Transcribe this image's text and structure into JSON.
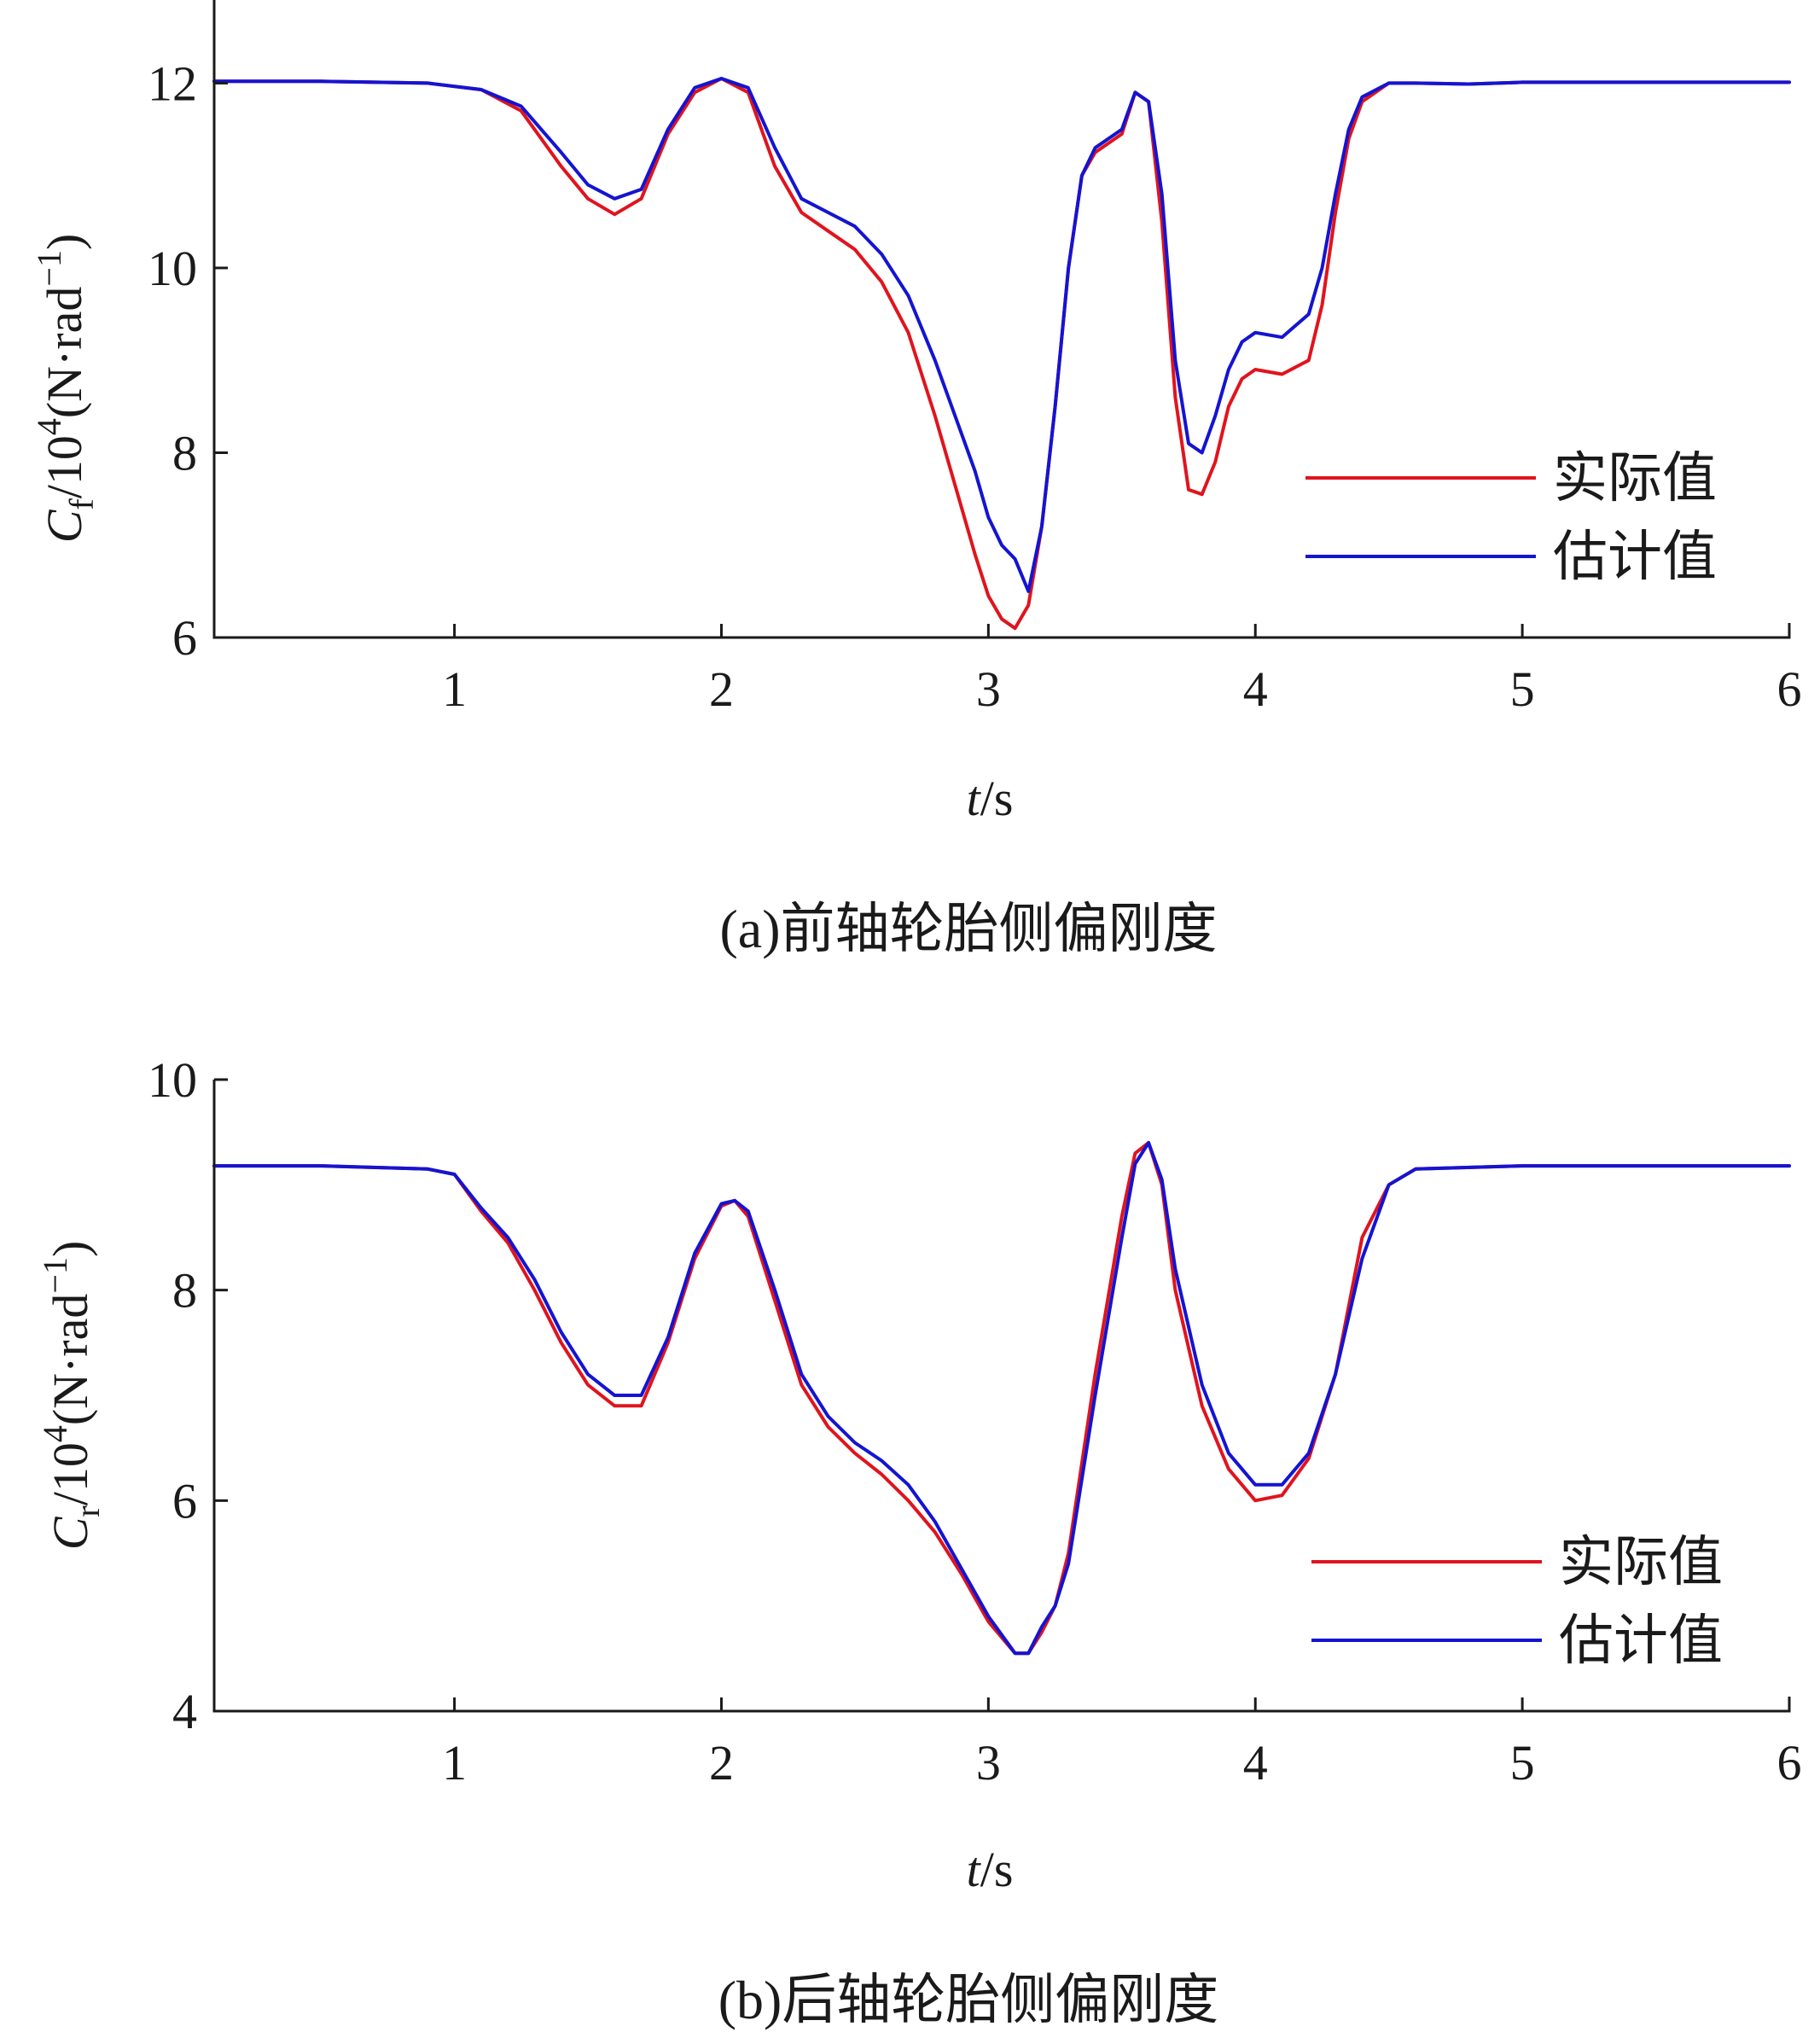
{
  "chart_data": [
    {
      "type": "line",
      "caption": "(a)前轴轮胎侧偏刚度",
      "xlabel": "t/s",
      "ylabel": "Cf/10⁴(N·rad⁻¹)",
      "xlim": [
        0.1,
        6
      ],
      "ylim": [
        6,
        12.9
      ],
      "xticks": [
        1,
        2,
        3,
        4,
        5,
        6
      ],
      "yticks": [
        6,
        8,
        10,
        12
      ],
      "legend_position": "right",
      "series": [
        {
          "name": "实际值",
          "color": "#e0141e",
          "x": [
            0.1,
            0.5,
            0.9,
            1.1,
            1.25,
            1.4,
            1.5,
            1.6,
            1.7,
            1.8,
            1.9,
            2.0,
            2.1,
            2.2,
            2.3,
            2.4,
            2.5,
            2.6,
            2.7,
            2.8,
            2.9,
            2.95,
            3.0,
            3.05,
            3.1,
            3.15,
            3.2,
            3.25,
            3.3,
            3.35,
            3.4,
            3.5,
            3.55,
            3.6,
            3.65,
            3.7,
            3.75,
            3.8,
            3.85,
            3.9,
            3.95,
            4.0,
            4.1,
            4.2,
            4.25,
            4.3,
            4.35,
            4.4,
            4.5,
            4.6,
            4.8,
            5.0,
            5.5,
            6.0
          ],
          "y": [
            12.02,
            12.02,
            12.0,
            11.93,
            11.7,
            11.1,
            10.75,
            10.58,
            10.75,
            11.45,
            11.9,
            12.05,
            11.9,
            11.1,
            10.6,
            10.4,
            10.2,
            9.85,
            9.3,
            8.4,
            7.4,
            6.9,
            6.45,
            6.2,
            6.1,
            6.35,
            7.2,
            8.5,
            10.0,
            11.0,
            11.25,
            11.45,
            11.9,
            11.8,
            10.5,
            8.6,
            7.6,
            7.55,
            7.9,
            8.5,
            8.8,
            8.9,
            8.85,
            9.0,
            9.6,
            10.6,
            11.4,
            11.8,
            12.0,
            12.0,
            11.99,
            12.01,
            12.01,
            12.01
          ]
        },
        {
          "name": "估计值",
          "color": "#1414d2",
          "x": [
            0.1,
            0.5,
            0.9,
            1.1,
            1.25,
            1.4,
            1.5,
            1.6,
            1.7,
            1.8,
            1.9,
            2.0,
            2.1,
            2.2,
            2.3,
            2.4,
            2.5,
            2.6,
            2.7,
            2.8,
            2.9,
            2.95,
            3.0,
            3.05,
            3.1,
            3.15,
            3.2,
            3.25,
            3.3,
            3.35,
            3.4,
            3.5,
            3.55,
            3.6,
            3.65,
            3.7,
            3.75,
            3.8,
            3.85,
            3.9,
            3.95,
            4.0,
            4.1,
            4.2,
            4.25,
            4.3,
            4.35,
            4.4,
            4.5,
            4.6,
            4.8,
            5.0,
            5.5,
            6.0
          ],
          "y": [
            12.02,
            12.02,
            12.0,
            11.93,
            11.75,
            11.25,
            10.9,
            10.75,
            10.85,
            11.5,
            11.95,
            12.05,
            11.95,
            11.3,
            10.75,
            10.6,
            10.45,
            10.15,
            9.7,
            9.0,
            8.2,
            7.8,
            7.3,
            7.0,
            6.85,
            6.5,
            7.2,
            8.5,
            10.0,
            11.0,
            11.3,
            11.5,
            11.9,
            11.8,
            10.8,
            9.0,
            8.1,
            8.0,
            8.4,
            8.9,
            9.2,
            9.3,
            9.25,
            9.5,
            10.0,
            10.8,
            11.5,
            11.85,
            12.0,
            12.0,
            11.99,
            12.01,
            12.01,
            12.01
          ]
        }
      ]
    },
    {
      "type": "line",
      "caption": "(b)后轴轮胎侧偏刚度",
      "xlabel": "t/s",
      "ylabel": "Cr/10⁴(N·rad⁻¹)",
      "xlim": [
        0.1,
        6
      ],
      "ylim": [
        4,
        10
      ],
      "xticks": [
        1,
        2,
        3,
        4,
        5,
        6
      ],
      "yticks": [
        4,
        6,
        8,
        10
      ],
      "legend_position": "right",
      "series": [
        {
          "name": "实际值",
          "color": "#e0141e",
          "x": [
            0.1,
            0.5,
            0.9,
            1.0,
            1.1,
            1.2,
            1.3,
            1.4,
            1.5,
            1.6,
            1.7,
            1.8,
            1.9,
            2.0,
            2.05,
            2.1,
            2.2,
            2.3,
            2.4,
            2.5,
            2.6,
            2.7,
            2.8,
            2.9,
            3.0,
            3.1,
            3.15,
            3.2,
            3.25,
            3.3,
            3.4,
            3.5,
            3.55,
            3.6,
            3.65,
            3.7,
            3.8,
            3.9,
            4.0,
            4.1,
            4.2,
            4.3,
            4.4,
            4.5,
            4.6,
            5.0,
            5.5,
            6.0
          ],
          "y": [
            9.18,
            9.18,
            9.15,
            9.1,
            8.75,
            8.45,
            8.0,
            7.5,
            7.1,
            6.9,
            6.9,
            7.5,
            8.3,
            8.8,
            8.85,
            8.7,
            7.9,
            7.1,
            6.7,
            6.45,
            6.25,
            6.0,
            5.7,
            5.3,
            4.85,
            4.55,
            4.55,
            4.75,
            5.0,
            5.5,
            7.2,
            8.7,
            9.3,
            9.4,
            9.0,
            8.0,
            6.9,
            6.3,
            6.0,
            6.05,
            6.4,
            7.2,
            8.5,
            9.0,
            9.15,
            9.18,
            9.18,
            9.18
          ]
        },
        {
          "name": "估计值",
          "color": "#1414d2",
          "x": [
            0.1,
            0.5,
            0.9,
            1.0,
            1.1,
            1.2,
            1.3,
            1.4,
            1.5,
            1.6,
            1.7,
            1.8,
            1.9,
            2.0,
            2.05,
            2.1,
            2.2,
            2.3,
            2.4,
            2.5,
            2.6,
            2.7,
            2.8,
            2.9,
            3.0,
            3.1,
            3.15,
            3.2,
            3.25,
            3.3,
            3.4,
            3.5,
            3.55,
            3.6,
            3.65,
            3.7,
            3.8,
            3.9,
            4.0,
            4.1,
            4.2,
            4.3,
            4.4,
            4.5,
            4.6,
            5.0,
            5.5,
            6.0
          ],
          "y": [
            9.18,
            9.18,
            9.15,
            9.1,
            8.78,
            8.5,
            8.1,
            7.6,
            7.2,
            7.0,
            7.0,
            7.55,
            8.35,
            8.82,
            8.85,
            8.75,
            8.0,
            7.2,
            6.8,
            6.55,
            6.38,
            6.15,
            5.8,
            5.35,
            4.9,
            4.55,
            4.55,
            4.8,
            5.0,
            5.4,
            7.0,
            8.5,
            9.2,
            9.4,
            9.05,
            8.2,
            7.1,
            6.45,
            6.15,
            6.15,
            6.45,
            7.2,
            8.3,
            9.0,
            9.15,
            9.18,
            9.18,
            9.18
          ]
        }
      ]
    }
  ]
}
